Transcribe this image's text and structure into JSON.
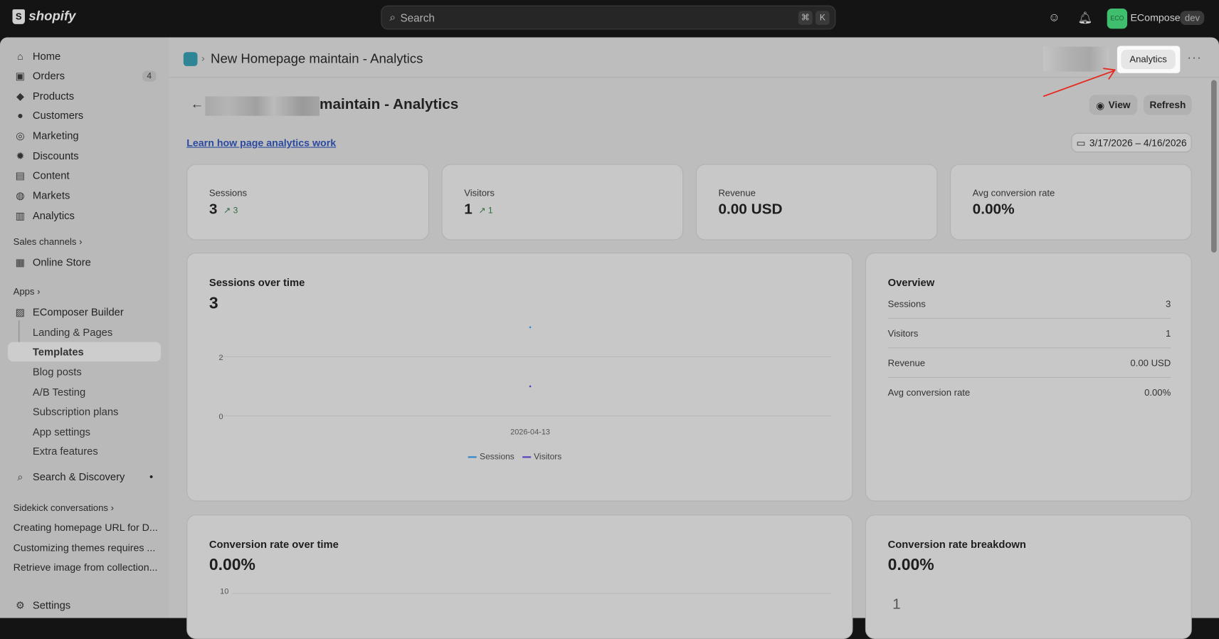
{
  "topbar": {
    "brand": "shopify",
    "search_placeholder": "Search",
    "shortcut": [
      "⌘",
      "K"
    ],
    "store_initials": "ECO",
    "store_name": "EComposer",
    "store_badge": "dev",
    "colors": {
      "store_avatar": "#3fbf6e"
    }
  },
  "sidebar": {
    "items": [
      {
        "label": "Home",
        "icon": "home-icon"
      },
      {
        "label": "Orders",
        "icon": "inbox-icon",
        "badge": "4"
      },
      {
        "label": "Products",
        "icon": "tag-icon"
      },
      {
        "label": "Customers",
        "icon": "person-icon"
      },
      {
        "label": "Marketing",
        "icon": "target-icon"
      },
      {
        "label": "Discounts",
        "icon": "discount-icon"
      },
      {
        "label": "Content",
        "icon": "content-icon"
      },
      {
        "label": "Markets",
        "icon": "globe-icon"
      },
      {
        "label": "Analytics",
        "icon": "bar-chart-icon"
      }
    ],
    "sales_channels": "Sales channels",
    "online_store": "Online Store",
    "apps": "Apps",
    "app_name": "EComposer Builder",
    "app_sub": [
      "Landing & Pages",
      "Templates",
      "Blog posts",
      "A/B Testing",
      "Subscription plans",
      "App settings",
      "Extra features"
    ],
    "selected": "Templates",
    "search_discovery": "Search & Discovery",
    "sidekick": "Sidekick conversations",
    "conversations": [
      "Creating homepage URL for D...",
      "Customizing themes requires ...",
      "Retrieve image from collection..."
    ],
    "settings": "Settings"
  },
  "header": {
    "title": "New Homepage maintain - Analytics",
    "analytics_button": "Analytics",
    "more": "···"
  },
  "page": {
    "title": "maintain - Analytics",
    "view": "View",
    "refresh": "Refresh",
    "learn_link": "Learn how page analytics work",
    "date_range": "3/17/2026 – 4/16/2026"
  },
  "stats": [
    {
      "label": "Sessions",
      "value": "3",
      "trend": "3"
    },
    {
      "label": "Visitors",
      "value": "1",
      "trend": "1"
    },
    {
      "label": "Revenue",
      "value": "0.00 USD"
    },
    {
      "label": "Avg conversion rate",
      "value": "0.00%"
    }
  ],
  "overview": {
    "title": "Overview",
    "rows": [
      {
        "label": "Sessions",
        "value": "3"
      },
      {
        "label": "Visitors",
        "value": "1"
      },
      {
        "label": "Revenue",
        "value": "0.00 USD"
      },
      {
        "label": "Avg conversion rate",
        "value": "0.00%"
      }
    ]
  },
  "conversion": {
    "title": "Conversion rate over time",
    "value": "0.00%",
    "tick": "10"
  },
  "breakdown": {
    "title": "Conversion rate breakdown",
    "value": "0.00%",
    "digit": "1"
  },
  "chart_data": {
    "type": "line",
    "title": "Sessions over time",
    "total": "3",
    "x": [
      "2026-04-13"
    ],
    "series": [
      {
        "name": "Sessions",
        "values": [
          3
        ],
        "color": "#2f86c9"
      },
      {
        "name": "Visitors",
        "values": [
          1
        ],
        "color": "#5a3fc0"
      }
    ],
    "ylim": [
      0,
      3
    ],
    "yticks": [
      "0",
      "2"
    ],
    "grid": true,
    "legend": "bottom"
  }
}
